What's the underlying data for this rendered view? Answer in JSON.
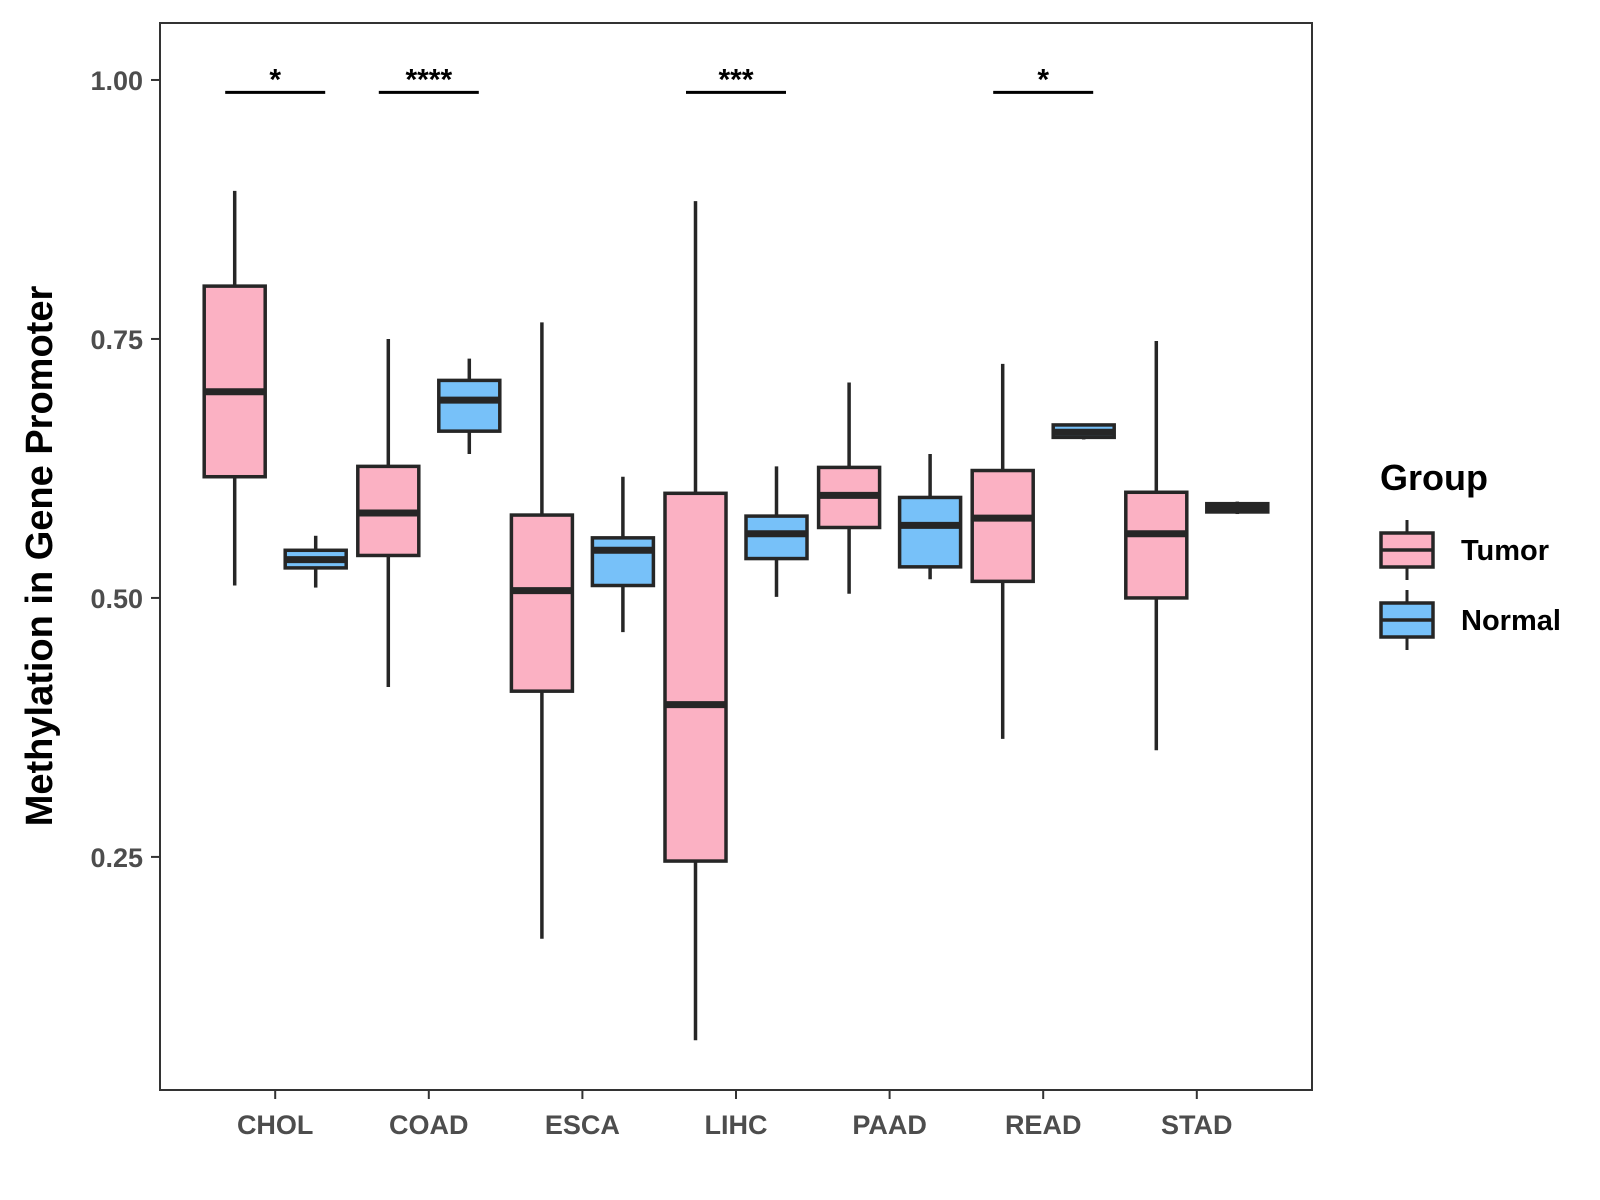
{
  "chart_data": {
    "type": "boxplot",
    "title": "",
    "xlabel": "",
    "ylabel": "Methylation in Gene Promoter",
    "ylim": [
      0.025,
      1.055
    ],
    "yticks": [
      0.25,
      0.5,
      0.75,
      1.0
    ],
    "ytick_labels": [
      "0.25",
      "0.50",
      "0.75",
      "1.00"
    ],
    "categories": [
      "CHOL",
      "COAD",
      "ESCA",
      "LIHC",
      "PAAD",
      "READ",
      "STAD"
    ],
    "legend": {
      "title": "Group",
      "position": "right",
      "items": [
        {
          "label": "Tumor",
          "color": "#FBB1C3"
        },
        {
          "label": "Normal",
          "color": "#77C1F9"
        }
      ]
    },
    "series": [
      {
        "name": "Tumor",
        "color": "#FBB1C3",
        "boxes": [
          {
            "min": 0.512,
            "q1": 0.617,
            "median": 0.699,
            "q3": 0.801,
            "max": 0.893
          },
          {
            "min": 0.414,
            "q1": 0.541,
            "median": 0.582,
            "q3": 0.627,
            "max": 0.75
          },
          {
            "min": 0.171,
            "q1": 0.41,
            "median": 0.507,
            "q3": 0.58,
            "max": 0.766
          },
          {
            "min": 0.073,
            "q1": 0.246,
            "median": 0.397,
            "q3": 0.601,
            "max": 0.883
          },
          {
            "min": 0.504,
            "q1": 0.568,
            "median": 0.599,
            "q3": 0.626,
            "max": 0.708
          },
          {
            "min": 0.364,
            "q1": 0.516,
            "median": 0.577,
            "q3": 0.623,
            "max": 0.726
          },
          {
            "min": 0.353,
            "q1": 0.5,
            "median": 0.562,
            "q3": 0.602,
            "max": 0.748
          }
        ]
      },
      {
        "name": "Normal",
        "color": "#77C1F9",
        "boxes": [
          {
            "min": 0.51,
            "q1": 0.529,
            "median": 0.537,
            "q3": 0.546,
            "max": 0.56
          },
          {
            "min": 0.639,
            "q1": 0.661,
            "median": 0.691,
            "q3": 0.71,
            "max": 0.731
          },
          {
            "min": 0.467,
            "q1": 0.512,
            "median": 0.546,
            "q3": 0.558,
            "max": 0.617
          },
          {
            "min": 0.501,
            "q1": 0.538,
            "median": 0.562,
            "q3": 0.579,
            "max": 0.627
          },
          {
            "min": 0.518,
            "q1": 0.53,
            "median": 0.57,
            "q3": 0.597,
            "max": 0.639
          },
          {
            "min": 0.653,
            "q1": 0.655,
            "median": 0.66,
            "q3": 0.667,
            "max": 0.668
          },
          {
            "min": 0.581,
            "q1": 0.583,
            "median": 0.587,
            "q3": 0.591,
            "max": 0.593
          }
        ]
      }
    ],
    "significance": [
      {
        "category": "CHOL",
        "label": "*",
        "y": 0.988
      },
      {
        "category": "COAD",
        "label": "****",
        "y": 0.988
      },
      {
        "category": "LIHC",
        "label": "***",
        "y": 0.988
      },
      {
        "category": "READ",
        "label": "*",
        "y": 0.988
      }
    ]
  }
}
